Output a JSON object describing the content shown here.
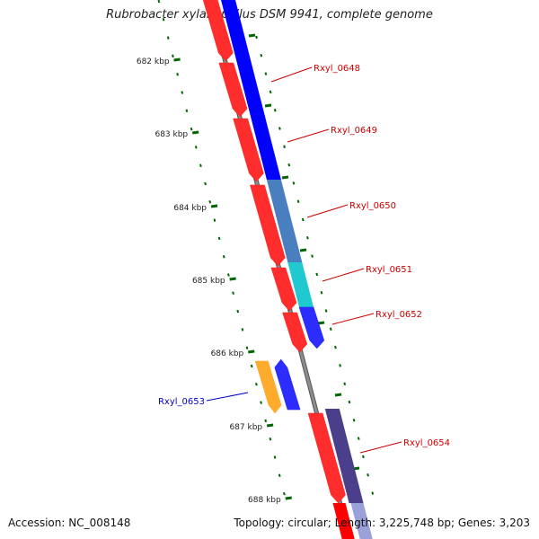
{
  "title": "Rubrobacter xylanophilus DSM 9941, complete genome",
  "footer": {
    "accession": "Accession: NC_008148",
    "stats": "Topology: circular; Length: 3,225,748 bp; Genes: 3,203"
  },
  "colors": {
    "background": "#ffffff",
    "backbone": "#8c8c8c",
    "forward_gene": "#ff0000",
    "reverse_gene": "#0000ff",
    "tick": "#006600",
    "label_forward": "#cc0000",
    "label_reverse": "#0000cc"
  },
  "axis": {
    "unit": "kbp",
    "ticks": [
      {
        "kbp": 682,
        "label": "682 kbp"
      },
      {
        "kbp": 683,
        "label": "683 kbp"
      },
      {
        "kbp": 684,
        "label": "684 kbp"
      },
      {
        "kbp": 685,
        "label": "685 kbp"
      },
      {
        "kbp": 686,
        "label": "686 kbp"
      },
      {
        "kbp": 687,
        "label": "687 kbp"
      },
      {
        "kbp": 688,
        "label": "688 kbp"
      }
    ]
  },
  "genes": [
    {
      "name": "Rxyl_0648",
      "color": "#ff0000"
    },
    {
      "name": "Rxyl_0649",
      "color": "#ff0000"
    },
    {
      "name": "Rxyl_0650",
      "color": "#ff0000"
    },
    {
      "name": "Rxyl_0651",
      "color": "#ff0000"
    },
    {
      "name": "Rxyl_0652",
      "color": "#ff0000"
    },
    {
      "name": "Rxyl_0653",
      "color": "#0000ff"
    },
    {
      "name": "Rxyl_0654",
      "color": "#ff0000"
    }
  ]
}
